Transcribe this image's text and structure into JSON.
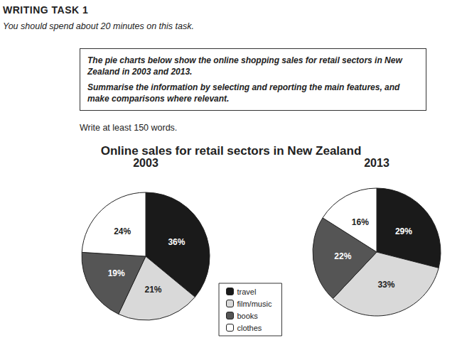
{
  "page": {
    "heading": "WRITING TASK 1",
    "instruction": "You should spend about 20 minutes on this task.",
    "task": [
      "The pie charts below show the online shopping sales for retail sectors in New Zealand in 2003 and 2013.",
      "Summarise the information by selecting and reporting the main features, and make comparisons where relevant."
    ],
    "word_count": "Write at least 150 words.",
    "chart_title": "Online sales for retail sectors in New Zealand"
  },
  "chart_data": [
    {
      "type": "pie",
      "title": "2003",
      "categories": [
        "travel",
        "film/music",
        "books",
        "clothes"
      ],
      "values": [
        36,
        21,
        19,
        24
      ],
      "value_labels": [
        "36%",
        "21%",
        "19%",
        "24%"
      ],
      "colors": [
        "#1a1a1a",
        "#d9d9d9",
        "#555555",
        "#ffffff"
      ],
      "data_labels": true
    },
    {
      "type": "pie",
      "title": "2013",
      "categories": [
        "travel",
        "film/music",
        "books",
        "clothes"
      ],
      "values": [
        29,
        33,
        22,
        16
      ],
      "value_labels": [
        "29%",
        "33%",
        "22%",
        "16%"
      ],
      "colors": [
        "#1a1a1a",
        "#d9d9d9",
        "#555555",
        "#ffffff"
      ],
      "data_labels": true
    }
  ]
}
